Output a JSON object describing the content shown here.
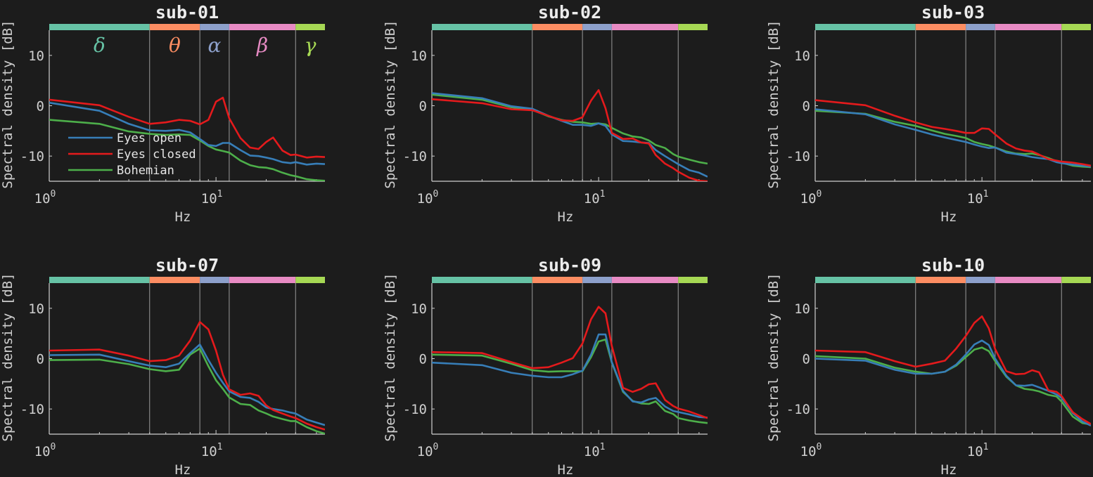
{
  "figure": {
    "background": "#1c1c1c",
    "axis_color": "#cfcfcf",
    "text_color": "#cfcfcf"
  },
  "chart_data": {
    "type": "line",
    "layout": {
      "rows": 2,
      "cols": 3
    },
    "xscale": "log",
    "xlim": [
      1,
      45
    ],
    "ylim": [
      -15,
      15
    ],
    "xlabel": "Hz",
    "ylabel": "Spectral density [dB]",
    "xticks": [
      1,
      10
    ],
    "xtick_labels": [
      {
        "base": "10",
        "exp": "0"
      },
      {
        "base": "10",
        "exp": "1"
      }
    ],
    "yticks": [
      10,
      0,
      -10
    ],
    "ytick_labels": [
      "10",
      "0",
      "-10"
    ],
    "bands": [
      {
        "name": "delta",
        "symbol": "δ",
        "from": 1,
        "to": 4,
        "color": "#66c2a5"
      },
      {
        "name": "theta",
        "symbol": "θ",
        "from": 4,
        "to": 8,
        "color": "#fc8d62"
      },
      {
        "name": "alpha",
        "symbol": "α",
        "from": 8,
        "to": 12,
        "color": "#8da0cb"
      },
      {
        "name": "beta",
        "symbol": "β",
        "from": 12,
        "to": 30,
        "color": "#e78ac3"
      },
      {
        "name": "gamma",
        "symbol": "γ",
        "from": 30,
        "to": 45,
        "color": "#a6d854"
      }
    ],
    "band_boundaries": [
      4,
      8,
      12,
      30
    ],
    "legend": {
      "position": "lower left (first panel only)",
      "entries": [
        {
          "label": "Eyes open",
          "color": "#377eb8"
        },
        {
          "label": "Eyes closed",
          "color": "#e41a1c"
        },
        {
          "label": "Bohemian",
          "color": "#4daf4a"
        }
      ]
    },
    "x": [
      1,
      2,
      3,
      4,
      5,
      6,
      7,
      8,
      9,
      10,
      11,
      12,
      14,
      16,
      18,
      20,
      22,
      25,
      28,
      30,
      35,
      40,
      45
    ],
    "panels": [
      {
        "title": "sub-01",
        "show_band_symbols": true,
        "show_legend": true,
        "series": [
          {
            "name": "Eyes open",
            "values": [
              0.6,
              -1.0,
              -3.6,
              -4.9,
              -5.0,
              -4.8,
              -5.3,
              -6.6,
              -7.8,
              -8.0,
              -7.4,
              -7.4,
              -8.8,
              -9.9,
              -10.0,
              -10.3,
              -10.6,
              -11.2,
              -11.4,
              -11.2,
              -11.7,
              -11.5,
              -11.6
            ]
          },
          {
            "name": "Eyes closed",
            "values": [
              1.2,
              0.1,
              -2.2,
              -3.6,
              -3.3,
              -2.8,
              -3.0,
              -3.7,
              -2.8,
              0.8,
              1.6,
              -2.5,
              -6.4,
              -8.3,
              -8.6,
              -7.2,
              -6.3,
              -8.9,
              -9.8,
              -9.7,
              -10.3,
              -10.1,
              -10.2
            ]
          },
          {
            "name": "Bohemian",
            "values": [
              -2.8,
              -3.6,
              -5.1,
              -5.6,
              -5.8,
              -5.7,
              -5.8,
              -6.9,
              -8.0,
              -8.7,
              -9.0,
              -9.3,
              -10.9,
              -11.8,
              -12.2,
              -12.3,
              -12.6,
              -13.3,
              -13.8,
              -14.0,
              -14.6,
              -14.8,
              -14.9
            ]
          }
        ]
      },
      {
        "title": "sub-02",
        "show_band_symbols": false,
        "show_legend": false,
        "series": [
          {
            "name": "Eyes open",
            "values": [
              2.5,
              1.5,
              -0.1,
              -0.6,
              -2.0,
              -3.0,
              -3.8,
              -3.8,
              -4.0,
              -3.5,
              -4.0,
              -5.7,
              -7.0,
              -7.1,
              -7.3,
              -7.4,
              -8.8,
              -10.0,
              -11.0,
              -11.6,
              -12.8,
              -13.3,
              -14.1
            ]
          },
          {
            "name": "Eyes closed",
            "values": [
              1.3,
              0.5,
              -0.7,
              -0.9,
              -2.0,
              -2.9,
              -3.0,
              -2.3,
              1.0,
              3.1,
              -0.5,
              -5.4,
              -6.6,
              -6.5,
              -7.3,
              -7.5,
              -9.8,
              -11.5,
              -12.4,
              -13.1,
              -14.3,
              -14.9,
              -15.0
            ]
          },
          {
            "name": "Bohemian",
            "values": [
              2.2,
              1.2,
              -0.3,
              -0.8,
              -2.1,
              -2.8,
              -3.2,
              -3.3,
              -3.6,
              -3.5,
              -3.7,
              -4.4,
              -5.5,
              -6.1,
              -6.3,
              -6.9,
              -7.8,
              -8.4,
              -9.6,
              -10.1,
              -10.7,
              -11.2,
              -11.5
            ]
          }
        ]
      },
      {
        "title": "sub-03",
        "show_band_symbols": false,
        "show_legend": false,
        "series": [
          {
            "name": "Eyes open",
            "values": [
              -0.7,
              -1.7,
              -3.7,
              -4.8,
              -5.7,
              -6.3,
              -6.8,
              -7.2,
              -7.7,
              -8.1,
              -8.4,
              -8.3,
              -9.3,
              -9.6,
              -9.9,
              -10.2,
              -10.4,
              -10.6,
              -11.2,
              -11.4,
              -11.7,
              -11.9,
              -12.1
            ]
          },
          {
            "name": "Eyes closed",
            "values": [
              1.1,
              0.1,
              -2.0,
              -3.3,
              -4.2,
              -4.6,
              -5.0,
              -5.4,
              -5.4,
              -4.5,
              -4.6,
              -5.7,
              -7.5,
              -8.5,
              -8.9,
              -9.1,
              -9.7,
              -10.6,
              -10.9,
              -11.1,
              -11.3,
              -11.6,
              -11.9
            ]
          },
          {
            "name": "Bohemian",
            "values": [
              -1.0,
              -1.6,
              -3.2,
              -4.0,
              -4.9,
              -5.6,
              -6.0,
              -6.4,
              -7.2,
              -7.6,
              -7.9,
              -8.3,
              -9.1,
              -9.5,
              -9.6,
              -9.5,
              -9.8,
              -10.4,
              -11.0,
              -11.3,
              -11.9,
              -12.1,
              -12.2
            ]
          }
        ]
      },
      {
        "title": "sub-07",
        "show_band_symbols": false,
        "show_legend": false,
        "series": [
          {
            "name": "Eyes open",
            "values": [
              0.7,
              0.8,
              -0.5,
              -1.4,
              -1.7,
              -1.0,
              1.1,
              2.8,
              -0.3,
              -2.8,
              -4.8,
              -6.5,
              -7.6,
              -7.8,
              -8.6,
              -9.7,
              -10.0,
              -10.3,
              -10.7,
              -10.9,
              -12.1,
              -12.7,
              -13.2
            ]
          },
          {
            "name": "Eyes closed",
            "values": [
              1.6,
              1.8,
              0.6,
              -0.5,
              -0.3,
              0.6,
              3.6,
              7.3,
              5.8,
              1.6,
              -3.2,
              -6.1,
              -7.2,
              -6.9,
              -7.4,
              -9.3,
              -10.2,
              -10.9,
              -11.5,
              -11.8,
              -12.9,
              -13.6,
              -14.1
            ]
          },
          {
            "name": "Bohemian",
            "values": [
              -0.3,
              -0.2,
              -1.1,
              -2.1,
              -2.5,
              -2.2,
              0.8,
              2.0,
              -1.5,
              -4.3,
              -6.0,
              -7.7,
              -9.0,
              -9.2,
              -10.3,
              -10.9,
              -11.5,
              -12.0,
              -12.4,
              -12.4,
              -13.6,
              -14.4,
              -14.9
            ]
          }
        ]
      },
      {
        "title": "sub-09",
        "show_band_symbols": false,
        "show_legend": false,
        "series": [
          {
            "name": "Eyes open",
            "values": [
              -0.8,
              -1.3,
              -2.8,
              -3.4,
              -3.7,
              -3.7,
              -3.1,
              -2.4,
              0.8,
              4.8,
              4.8,
              -0.7,
              -6.4,
              -8.5,
              -8.7,
              -8.1,
              -7.8,
              -9.5,
              -10.4,
              -10.6,
              -11.1,
              -11.6,
              -11.7
            ]
          },
          {
            "name": "Eyes closed",
            "values": [
              1.3,
              1.1,
              -0.7,
              -1.9,
              -1.7,
              -0.8,
              0.1,
              3.0,
              7.8,
              10.3,
              9.0,
              2.5,
              -5.8,
              -6.6,
              -6.0,
              -5.1,
              -4.9,
              -8.2,
              -9.4,
              -9.9,
              -10.5,
              -11.2,
              -11.8
            ]
          },
          {
            "name": "Bohemian",
            "values": [
              0.8,
              0.6,
              -1.0,
              -2.3,
              -2.6,
              -2.5,
              -2.5,
              -2.5,
              0.3,
              3.4,
              3.8,
              -0.8,
              -6.6,
              -8.4,
              -8.9,
              -9.0,
              -8.5,
              -10.4,
              -11.0,
              -11.8,
              -12.3,
              -12.6,
              -12.8
            ]
          }
        ]
      },
      {
        "title": "sub-10",
        "show_band_symbols": false,
        "show_legend": false,
        "series": [
          {
            "name": "Eyes open",
            "values": [
              0.0,
              -0.4,
              -2.2,
              -3.0,
              -3.0,
              -2.6,
              -1.2,
              0.8,
              2.8,
              3.6,
              2.7,
              0.0,
              -3.4,
              -5.3,
              -5.4,
              -5.2,
              -5.7,
              -6.4,
              -7.1,
              -7.8,
              -10.8,
              -12.5,
              -13.3
            ]
          },
          {
            "name": "Eyes closed",
            "values": [
              1.6,
              1.3,
              -0.5,
              -1.6,
              -1.0,
              -0.4,
              2.0,
              4.5,
              7.1,
              8.4,
              6.0,
              1.9,
              -2.5,
              -3.1,
              -3.0,
              -2.3,
              -2.7,
              -6.3,
              -6.6,
              -7.4,
              -10.6,
              -12.0,
              -13.0
            ]
          },
          {
            "name": "Bohemian",
            "values": [
              0.5,
              0.0,
              -1.8,
              -2.6,
              -3.0,
              -2.6,
              -1.4,
              0.3,
              1.8,
              2.2,
              1.5,
              -0.5,
              -3.6,
              -5.3,
              -6.0,
              -6.2,
              -6.5,
              -7.2,
              -7.5,
              -8.5,
              -11.5,
              -12.8,
              -13.1
            ]
          }
        ]
      }
    ]
  }
}
